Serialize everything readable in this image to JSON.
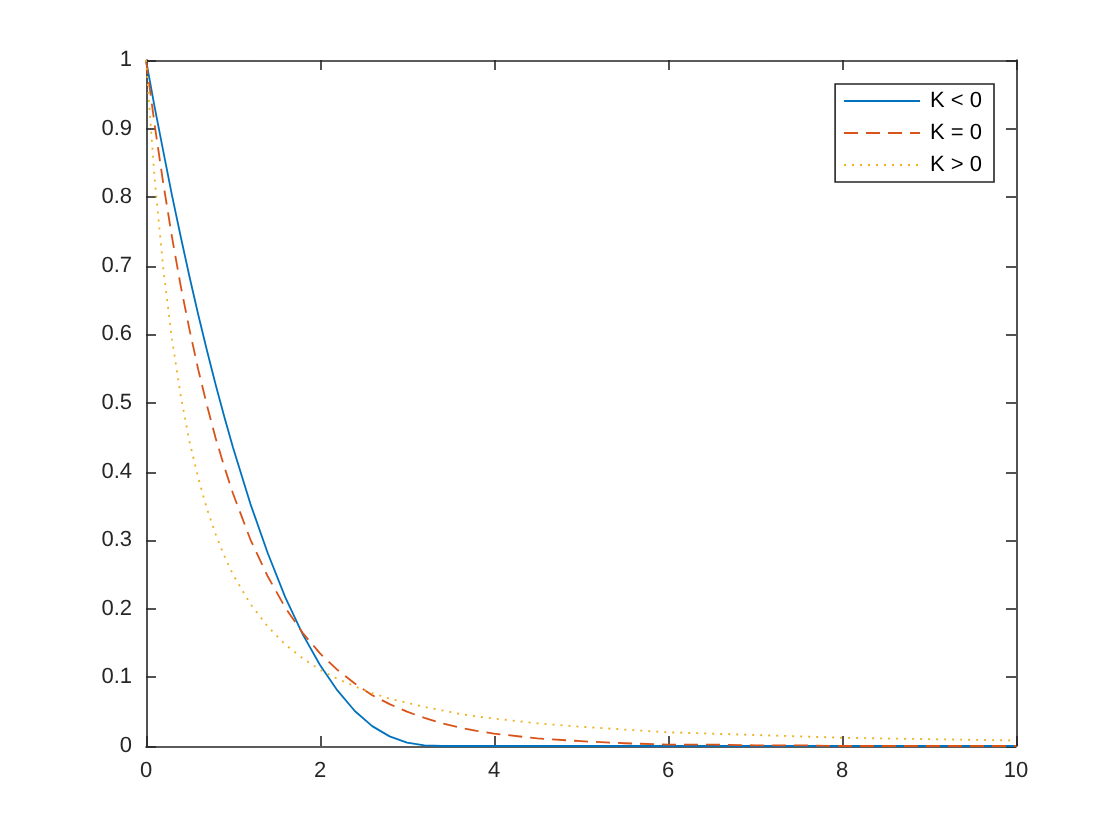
{
  "chart_data": {
    "type": "line",
    "x": [
      0,
      0.1,
      0.2,
      0.3,
      0.4,
      0.5,
      0.6,
      0.7,
      0.8,
      0.9,
      1,
      1.2,
      1.4,
      1.6,
      1.8,
      2,
      2.2,
      2.4,
      2.6,
      2.8,
      3,
      3.2,
      3.4,
      3.6,
      3.8,
      4,
      4.5,
      5,
      5.5,
      6,
      6.5,
      7,
      7.5,
      8,
      8.5,
      9,
      9.5,
      10
    ],
    "series": [
      {
        "name": "K < 0",
        "color": "#0072bd",
        "line_style": "solid",
        "values": [
          1,
          0.931,
          0.866,
          0.802,
          0.742,
          0.684,
          0.629,
          0.577,
          0.527,
          0.48,
          0.435,
          0.353,
          0.281,
          0.217,
          0.163,
          0.118,
          0.081,
          0.051,
          0.029,
          0.014,
          0.005,
          0.001,
          0,
          0,
          0,
          0,
          0,
          0,
          0,
          0,
          0,
          0,
          0,
          0,
          0,
          0,
          0,
          0
        ]
      },
      {
        "name": "K = 0",
        "color": "#d95319",
        "line_style": "dashed",
        "values": [
          1,
          0.905,
          0.819,
          0.741,
          0.67,
          0.607,
          0.549,
          0.497,
          0.449,
          0.407,
          0.368,
          0.301,
          0.247,
          0.202,
          0.165,
          0.135,
          0.111,
          0.091,
          0.074,
          0.061,
          0.05,
          0.041,
          0.033,
          0.027,
          0.022,
          0.018,
          0.011,
          0.007,
          0.004,
          0.002,
          0.002,
          0.001,
          0.001,
          0,
          0,
          0,
          0,
          0
        ]
      },
      {
        "name": "K > 0",
        "color": "#edb120",
        "line_style": "dotted",
        "values": [
          1,
          0.826,
          0.694,
          0.592,
          0.51,
          0.444,
          0.391,
          0.346,
          0.309,
          0.277,
          0.25,
          0.207,
          0.174,
          0.148,
          0.128,
          0.111,
          0.098,
          0.087,
          0.077,
          0.069,
          0.063,
          0.057,
          0.052,
          0.047,
          0.043,
          0.04,
          0.033,
          0.028,
          0.024,
          0.02,
          0.018,
          0.016,
          0.014,
          0.012,
          0.011,
          0.01,
          0.009,
          0.008
        ]
      }
    ],
    "xlim": [
      0,
      10
    ],
    "ylim": [
      0,
      1
    ],
    "xticks": [
      0,
      2,
      4,
      6,
      8,
      10
    ],
    "yticks": [
      0,
      0.1,
      0.2,
      0.3,
      0.4,
      0.5,
      0.6,
      0.7,
      0.8,
      0.9,
      1
    ],
    "legend": "top right",
    "marker": "none"
  }
}
